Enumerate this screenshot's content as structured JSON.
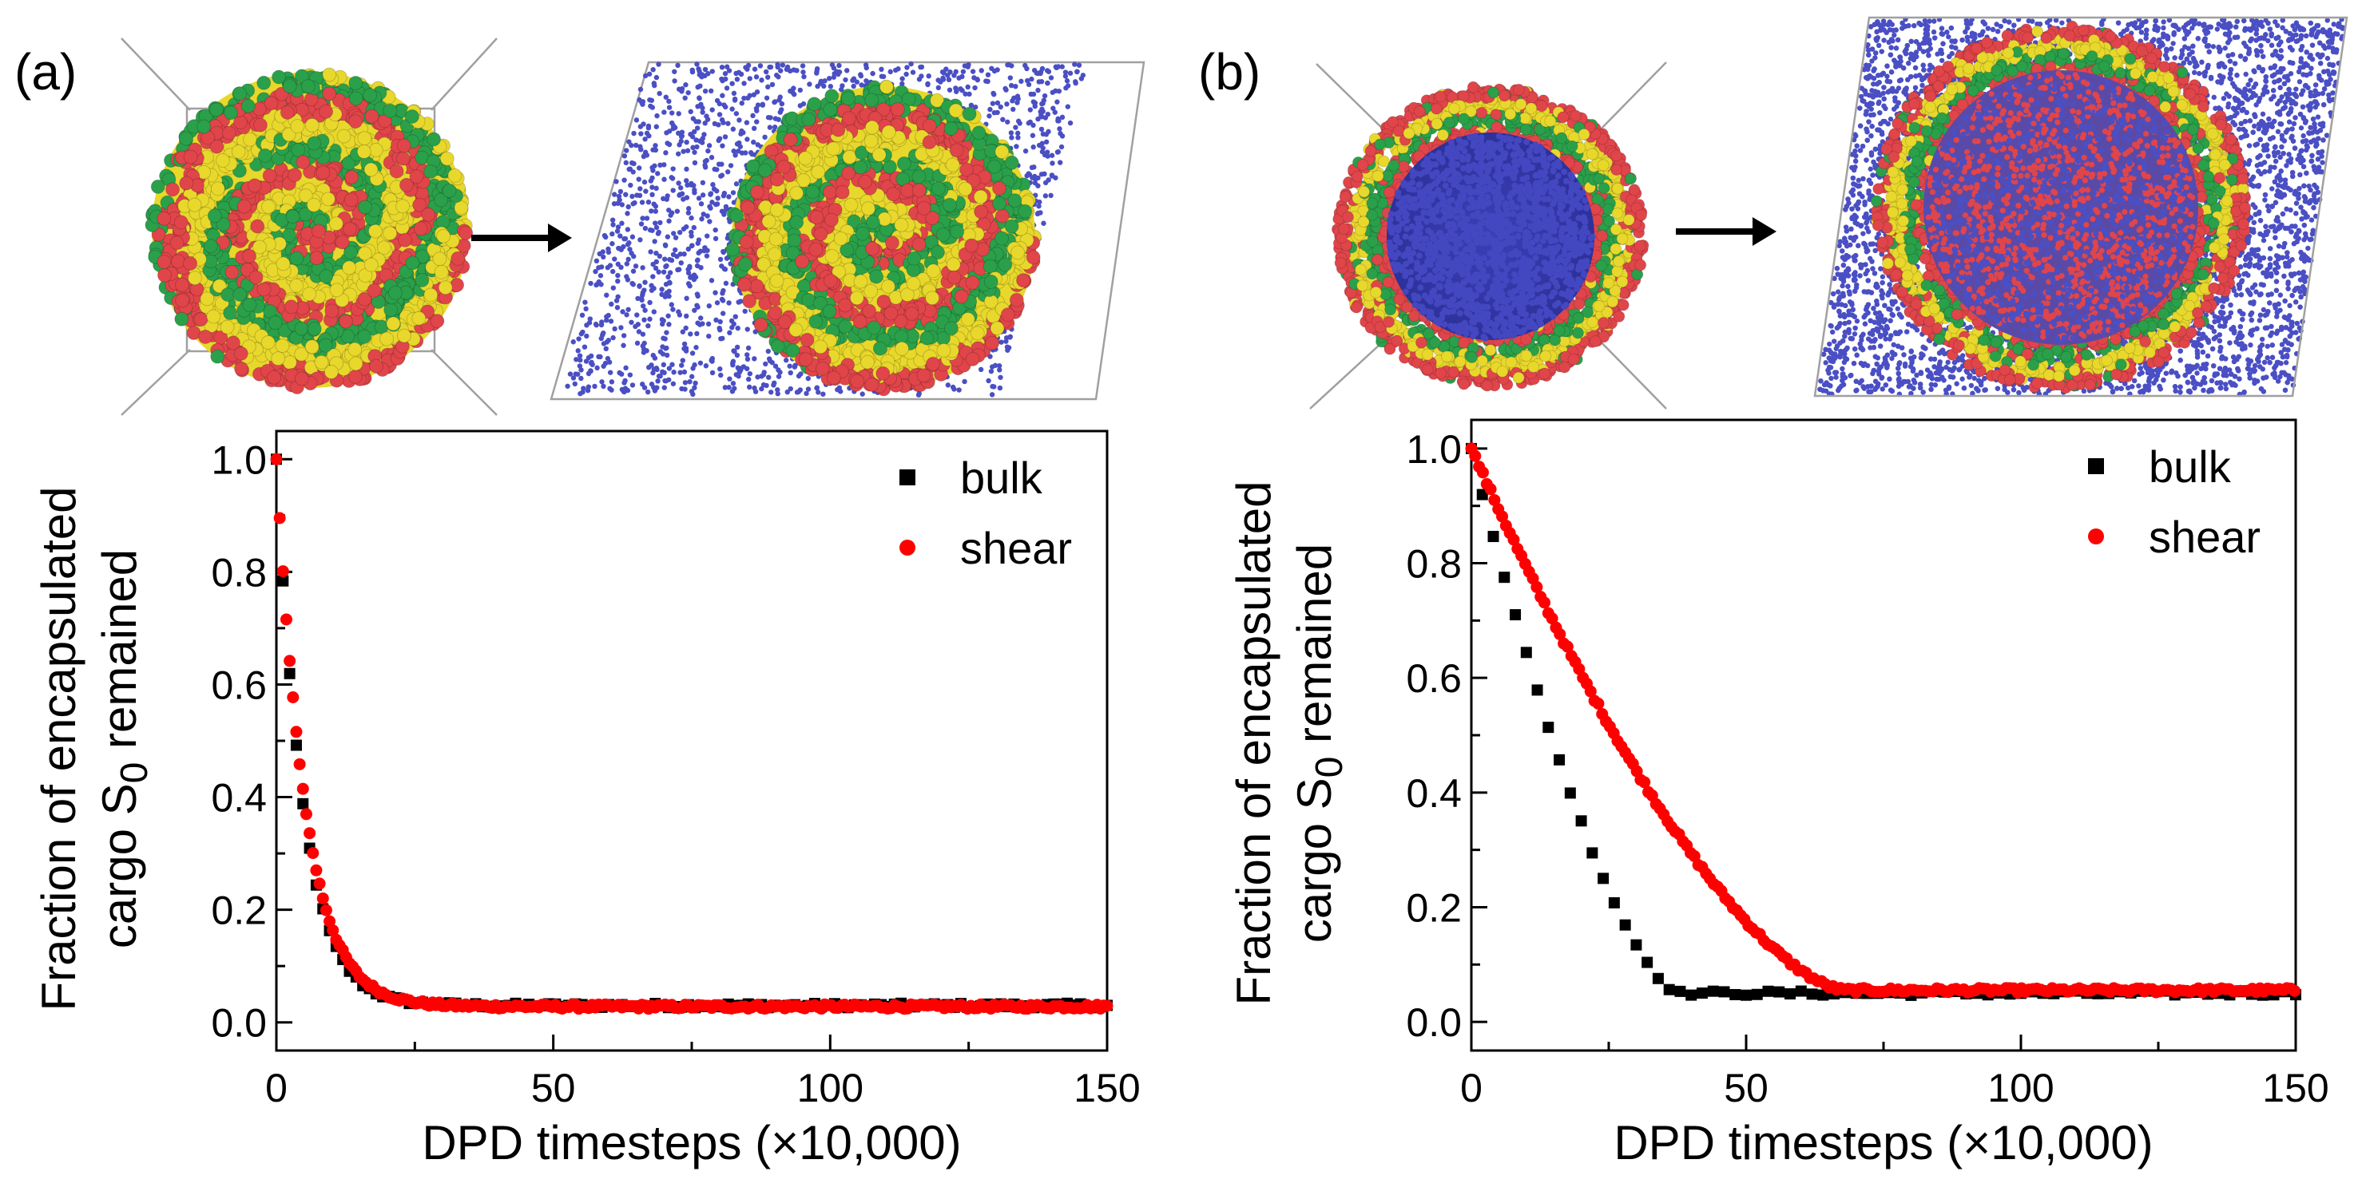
{
  "chart_data": [
    {
      "type": "scatter",
      "panel": "(a)",
      "title": "",
      "xlabel": "DPD timesteps (×10,000)",
      "ylabel_line1": "Fraction of encapsulated",
      "ylabel_line2_prefix": "cargo S",
      "ylabel_subscript": "0",
      "ylabel_line2_suffix": " remained",
      "xlim": [
        0,
        150
      ],
      "ylim": [
        -0.05,
        1.05
      ],
      "xticks": [
        0,
        50,
        100,
        150
      ],
      "yticks": [
        0.0,
        0.2,
        0.4,
        0.6,
        0.8,
        1.0
      ],
      "xtick_labels": [
        "0",
        "50",
        "100",
        "150"
      ],
      "ytick_labels": [
        "0.0",
        "0.2",
        "0.4",
        "0.6",
        "0.8",
        "1.0"
      ],
      "legend_position": "top-right",
      "series": [
        {
          "name": "bulk",
          "marker": "square",
          "color": "#000000",
          "model": "exp",
          "start": 1.0,
          "floor": 0.03,
          "tau": 4.8,
          "step": 1.2
        },
        {
          "name": "shear",
          "marker": "circle",
          "color": "#ff0000",
          "model": "exp",
          "start": 1.0,
          "floor": 0.028,
          "tau": 5.2,
          "step": 0.6
        }
      ],
      "illustration": {
        "left": "spherical multicompartment micelle with concentric yellow, red and green layers",
        "right": "micelle under shear in a sheared box with released blue cargo beads"
      }
    },
    {
      "type": "scatter",
      "panel": "(b)",
      "title": "",
      "xlabel": "DPD timesteps (×10,000)",
      "ylabel_line1": "Fraction of encapsulated",
      "ylabel_line2_prefix": "cargo S",
      "ylabel_subscript": "0",
      "ylabel_line2_suffix": " remained",
      "xlim": [
        0,
        150
      ],
      "ylim": [
        -0.05,
        1.05
      ],
      "xticks": [
        0,
        50,
        100,
        150
      ],
      "yticks": [
        0.0,
        0.2,
        0.4,
        0.6,
        0.8,
        1.0
      ],
      "xtick_labels": [
        "0",
        "50",
        "100",
        "150"
      ],
      "ytick_labels": [
        "0.0",
        "0.2",
        "0.4",
        "0.6",
        "0.8",
        "1.0"
      ],
      "legend_position": "top-right",
      "series": [
        {
          "name": "bulk",
          "marker": "square",
          "color": "#000000",
          "model": "quad",
          "start": 1.0,
          "floor": 0.05,
          "tend": 38,
          "step": 2.0
        },
        {
          "name": "shear",
          "marker": "circle",
          "color": "#ff0000",
          "model": "quad",
          "start": 1.0,
          "floor": 0.055,
          "tend": 68,
          "step": 0.7
        }
      ],
      "illustration": {
        "left": "vesicle with blue cargo core wrapped by red, yellow and green shells",
        "right": "vesicle under shear in a sheared box surrounded by released blue cargo beads"
      }
    }
  ],
  "colors": {
    "cargo": "#4a4fc4",
    "red_block": "#e0454a",
    "yellow_block": "#e8d82c",
    "green_block": "#2aa04a",
    "box_line": "#a0a0a0"
  }
}
